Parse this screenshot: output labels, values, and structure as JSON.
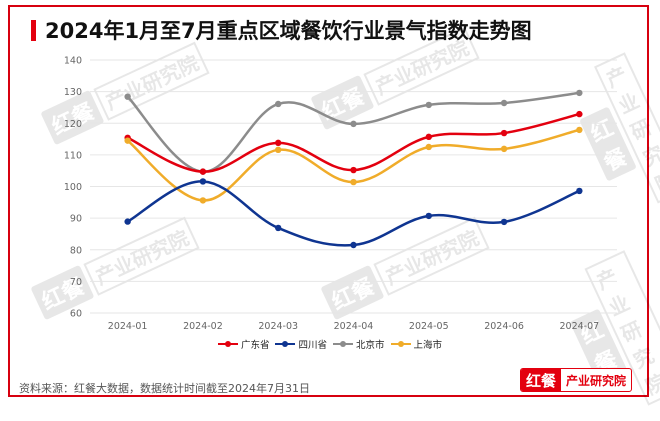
{
  "title": "2024年1月至7月重点区域餐饮行业景气指数走势图",
  "source": "资料来源：红餐大数据，数据统计时间截至2024年7月31日",
  "brand": {
    "logo": "红餐",
    "text": "产业研究院"
  },
  "watermark": {
    "logo": "红餐",
    "text": "产业研究院"
  },
  "colors": {
    "accent": "#e3000f",
    "guangdong": "#e3000f",
    "sichuan": "#0f3591",
    "beijing": "#8c8c8c",
    "shanghai": "#f0ac2a",
    "grid": "#e6e6e6"
  },
  "chart_data": {
    "type": "line",
    "title": "2024年1月至7月重点区域餐饮行业景气指数走势图",
    "xlabel": "",
    "ylabel": "",
    "categories": [
      "2024-01",
      "2024-02",
      "2024-03",
      "2024-04",
      "2024-05",
      "2024-06",
      "2024-07"
    ],
    "ylim": [
      60,
      140
    ],
    "yticks": [
      60,
      70,
      80,
      90,
      100,
      110,
      120,
      130,
      140
    ],
    "grid": true,
    "smooth": true,
    "legend_position": "bottom",
    "series": [
      {
        "name": "广东省",
        "color": "#e3000f",
        "values": [
          115.4,
          104.7,
          113.8,
          105.2,
          115.7,
          116.9,
          122.9
        ]
      },
      {
        "name": "四川省",
        "color": "#0f3591",
        "values": [
          88.9,
          101.6,
          86.9,
          81.5,
          90.7,
          88.8,
          98.6
        ]
      },
      {
        "name": "北京市",
        "color": "#8c8c8c",
        "values": [
          128.4,
          104.7,
          126.1,
          119.8,
          125.8,
          126.4,
          129.6
        ]
      },
      {
        "name": "上海市",
        "color": "#f0ac2a",
        "values": [
          114.5,
          95.6,
          111.6,
          101.4,
          112.5,
          111.9,
          117.9
        ]
      }
    ]
  }
}
